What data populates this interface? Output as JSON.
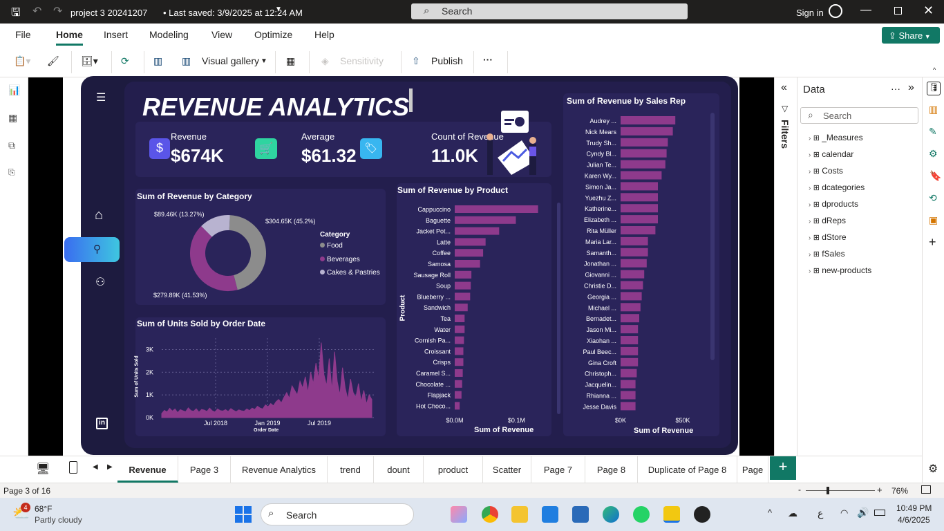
{
  "titlebar": {
    "file_title": "project 3 20241207",
    "saved": "• Last saved: 3/9/2025 at 12:24 AM",
    "search_placeholder": "Search",
    "signin": "Sign in"
  },
  "menu": [
    "File",
    "Home",
    "Insert",
    "Modeling",
    "View",
    "Optimize",
    "Help"
  ],
  "share_label": "Share",
  "toolbar": {
    "visual_gallery": "Visual gallery",
    "sensitivity": "Sensitivity",
    "publish": "Publish",
    "more": "···"
  },
  "dashboard": {
    "title": "REVENUE ANALYTICS",
    "kpis": [
      {
        "label": "Revenue",
        "value": "$674K"
      },
      {
        "label": "Average",
        "value": "$61.32"
      },
      {
        "label": "Count of Revenue",
        "value": "11.0K"
      }
    ],
    "donut": {
      "title": "Sum of Revenue by Category",
      "legend_title": "Category",
      "labels": [
        "$89.46K (13.27%)",
        "$304.65K (45.2%)",
        "$279.89K (41.53%)"
      ]
    },
    "line": {
      "title": "Sum of Units Sold by Order Date",
      "ylabel": "Sum of Units Sold",
      "xlabel": "Order Date"
    },
    "product": {
      "title": "Sum of Revenue by Product",
      "ylabel": "Product",
      "xlabel": "Sum of Revenue"
    },
    "reps": {
      "title": "Sum of Revenue by Sales Rep",
      "xlabel": "Sum of Revenue"
    }
  },
  "chart_data": [
    {
      "type": "pie",
      "title": "Sum of Revenue by Category",
      "categories": [
        "Food",
        "Beverages",
        "Cakes & Pastries"
      ],
      "values": [
        304.65,
        279.89,
        89.46
      ],
      "percent": [
        45.2,
        41.53,
        13.27
      ],
      "colors": [
        "#8c8c8c",
        "#8e3a8c",
        "#b8b3d0"
      ],
      "legend": "right"
    },
    {
      "type": "area",
      "title": "Sum of Units Sold by Order Date",
      "x_ticks": [
        "Jul 2018",
        "Jan 2019",
        "Jul 2019"
      ],
      "y_ticks": [
        "0K",
        "1K",
        "2K",
        "3K"
      ],
      "ylim": [
        0,
        3500
      ],
      "series": [
        {
          "values": [
            180,
            320,
            250,
            410,
            290,
            380,
            220,
            350,
            300,
            260,
            430,
            310,
            280,
            390,
            240,
            360,
            330,
            270,
            420,
            300,
            250,
            380,
            310,
            290,
            350,
            270,
            400,
            320,
            260,
            340,
            300,
            280,
            380,
            310,
            420,
            360,
            500,
            420,
            380,
            560,
            480,
            620,
            520,
            700,
            800,
            650,
            900,
            1100,
            850,
            1400,
            1200,
            1000,
            1600,
            1300,
            1800,
            1100,
            2000,
            1500,
            2400,
            1700,
            3300,
            1900,
            1400,
            2600,
            1200,
            2900,
            1600,
            1000,
            2200,
            1300,
            800,
            1700,
            1100,
            900,
            1500,
            700,
            1200,
            600,
            1000,
            800
          ]
        }
      ],
      "color": "#8e3a8c"
    },
    {
      "type": "bar",
      "title": "Sum of Revenue by Product",
      "orientation": "horizontal",
      "categories": [
        "Cappuccino",
        "Baguette",
        "Jacket Pot...",
        "Latte",
        "Coffee",
        "Samosa",
        "Sausage Roll",
        "Soup",
        "Blueberry ...",
        "Sandwich",
        "Tea",
        "Water",
        "Cornish Pa...",
        "Croissant",
        "Crisps",
        "Caramel S...",
        "Chocolate ...",
        "Flapjack",
        "Hot Choco..."
      ],
      "values": [
        0.135,
        0.099,
        0.072,
        0.05,
        0.046,
        0.041,
        0.027,
        0.026,
        0.025,
        0.021,
        0.016,
        0.016,
        0.015,
        0.014,
        0.014,
        0.013,
        0.012,
        0.011,
        0.008
      ],
      "x_ticks": [
        "$0.0M",
        "$0.1M"
      ],
      "xlim": [
        0,
        0.15
      ],
      "unit": "$M",
      "color": "#8e3a8c"
    },
    {
      "type": "bar",
      "title": "Sum of Revenue by Sales Rep",
      "orientation": "horizontal",
      "categories": [
        "Audrey ...",
        "Nick Mears",
        "Trudy Sh...",
        "Cyndy Bl...",
        "Julian Te...",
        "Karen Wy...",
        "Simon Ja...",
        "Yuezhu Z...",
        "Katherine...",
        "Elizabeth ...",
        "Rita Müller",
        "Maria Lar...",
        "Samanth...",
        "Jonathan ...",
        "Giovanni ...",
        "Christie D...",
        "Georgia ...",
        "Michael ...",
        "Bernadet...",
        "Jason Mi...",
        "Xiaohan ...",
        "Paul Beec...",
        "Gina Croft",
        "Christoph...",
        "Jacquelin...",
        "Rhianna ...",
        "Jesse Davis"
      ],
      "values": [
        44,
        42,
        38,
        37,
        36,
        33,
        30,
        30,
        30,
        30,
        28,
        22,
        22,
        21,
        19,
        18,
        17,
        16,
        15,
        14,
        14,
        14,
        14,
        13,
        12,
        12,
        12
      ],
      "x_ticks": [
        "$0K",
        "$50K"
      ],
      "xlim": [
        0,
        65
      ],
      "unit": "$K",
      "color": "#8e3a8c"
    }
  ],
  "data_pane": {
    "title": "Data",
    "search_placeholder": "Search",
    "filters_label": "Filters",
    "fields": [
      "_Measures",
      "calendar",
      "Costs",
      "dcategories",
      "dproducts",
      "dReps",
      "dStore",
      "fSales",
      "new-products"
    ]
  },
  "pages": [
    "Revenue",
    "Page 3",
    "Revenue Analytics",
    "trend",
    "dount",
    "product",
    "Scatter",
    "Page 7",
    "Page 8",
    "Duplicate of Page 8",
    "Page"
  ],
  "status": {
    "page": "Page 3 of 16",
    "zoom": "76%"
  },
  "taskbar": {
    "weather_temp": "68°F",
    "weather_desc": "Partly cloudy",
    "weather_badge": "4",
    "search": "Search",
    "time": "10:49 PM",
    "date": "4/6/2025",
    "lang": "ع"
  }
}
